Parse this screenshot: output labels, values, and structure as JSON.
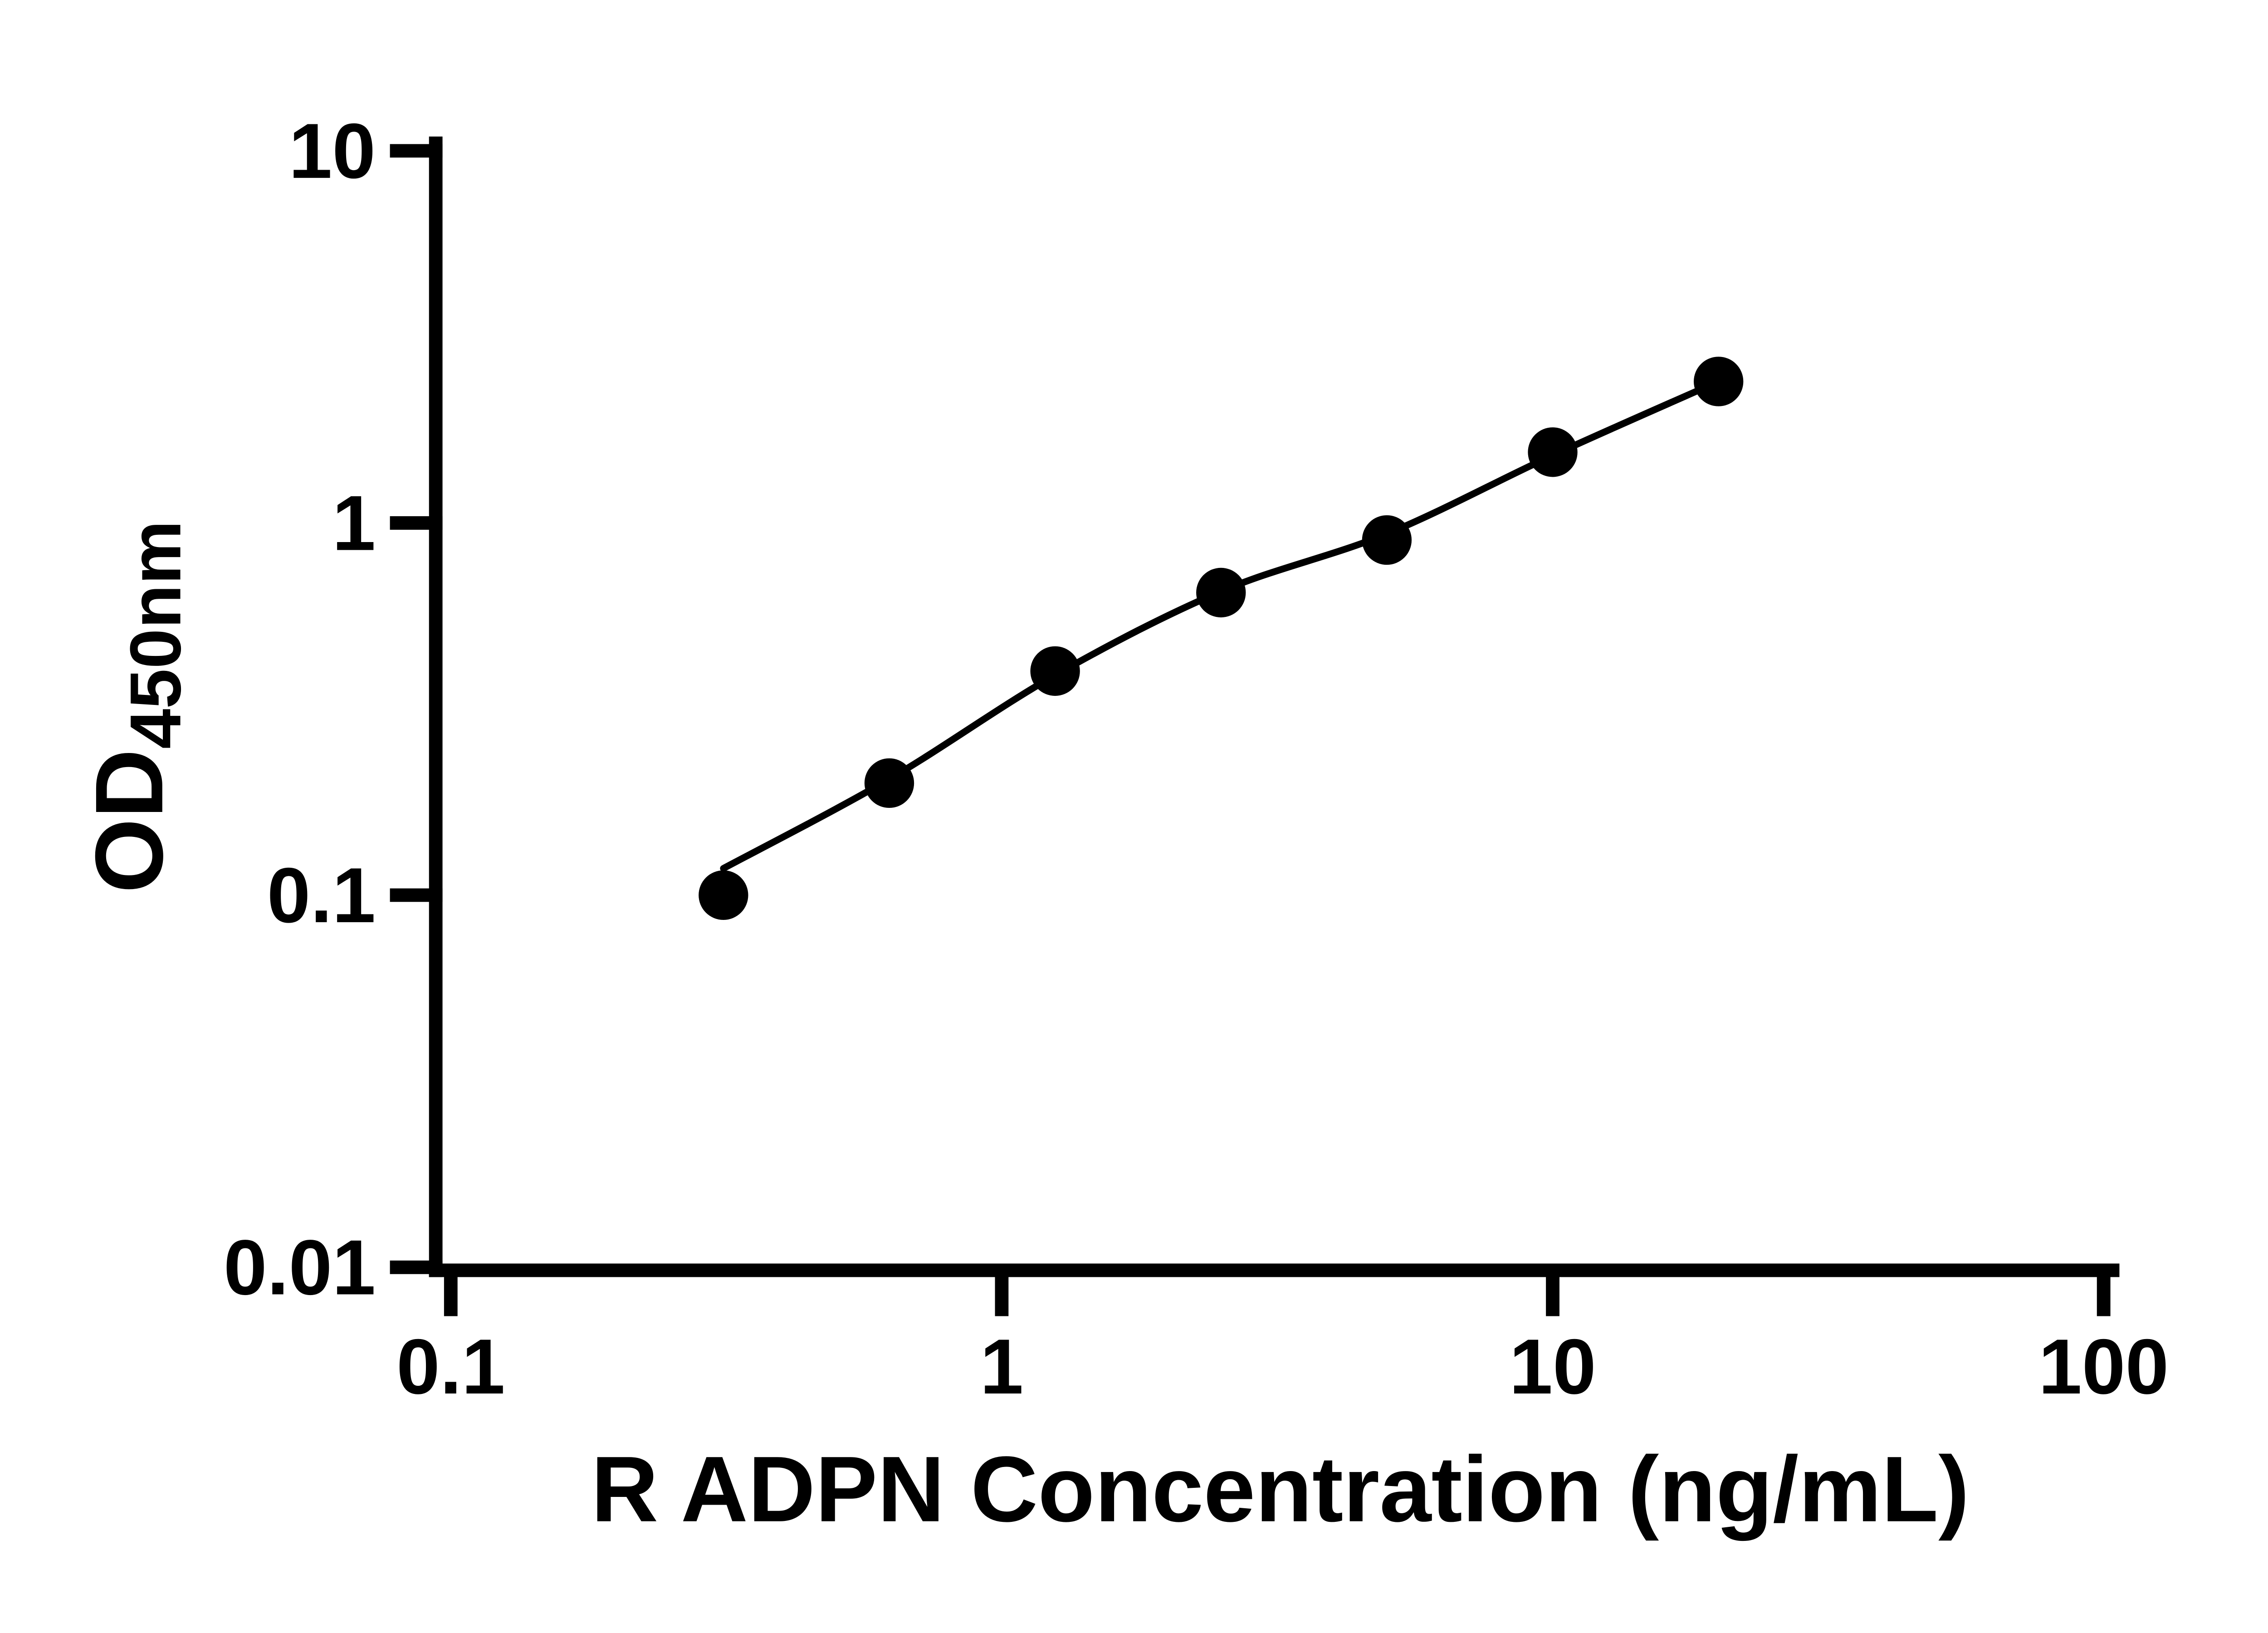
{
  "figure": {
    "background_color": "#ffffff",
    "axis_color": "#000000",
    "marker_color": "#000000",
    "line_color": "#000000"
  },
  "chart_data": {
    "type": "scatter",
    "subtype": "elisa-standard-curve-with-fit-line",
    "title": "",
    "xlabel": "R ADPN Concentration (ng/mL)",
    "ylabel_main": "OD",
    "ylabel_sub": "450nm",
    "x_scale": "log10",
    "y_scale": "log10",
    "xlim": [
      0.1,
      100
    ],
    "ylim": [
      0.01,
      10
    ],
    "x_ticks": [
      0.1,
      1,
      10,
      100
    ],
    "x_tick_labels": [
      "0.1",
      "1",
      "10",
      "100"
    ],
    "y_ticks": [
      0.01,
      0.1,
      1,
      10
    ],
    "y_tick_labels": [
      "0.01",
      "0.1",
      "1",
      "10"
    ],
    "grid": false,
    "legend": "none",
    "series": [
      {
        "marker": "filled-circle",
        "points": [
          {
            "x": 0.3125,
            "y": 0.1
          },
          {
            "x": 0.625,
            "y": 0.2
          },
          {
            "x": 1.25,
            "y": 0.4
          },
          {
            "x": 2.5,
            "y": 0.65
          },
          {
            "x": 5,
            "y": 0.9
          },
          {
            "x": 10,
            "y": 1.55
          },
          {
            "x": 20,
            "y": 2.4
          }
        ]
      }
    ],
    "fit_curve_points": [
      {
        "x": 0.3125,
        "y": 0.118
      },
      {
        "x": 0.625,
        "y": 0.205
      },
      {
        "x": 1.25,
        "y": 0.39
      },
      {
        "x": 2.5,
        "y": 0.655
      },
      {
        "x": 5,
        "y": 0.935
      },
      {
        "x": 10,
        "y": 1.52
      },
      {
        "x": 20,
        "y": 2.4
      }
    ]
  }
}
